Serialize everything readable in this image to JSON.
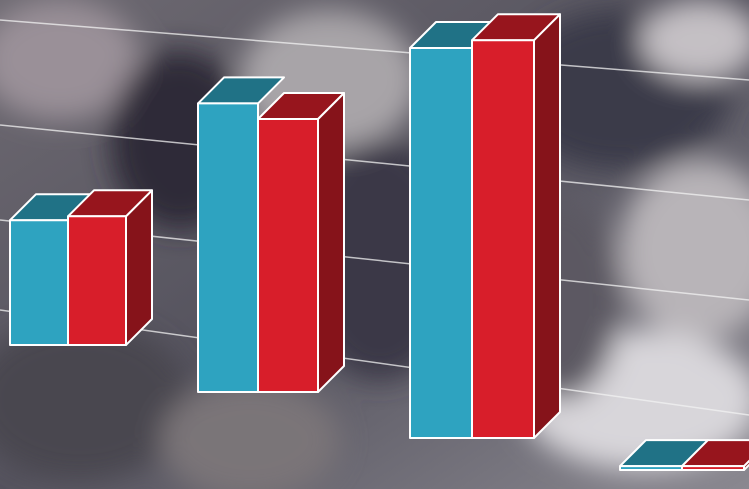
{
  "chart_data": {
    "type": "bar3d",
    "categories": [
      null,
      null,
      null,
      null
    ],
    "series": [
      {
        "color": "#2ea3c0",
        "values": [
          32,
          74,
          100,
          1
        ]
      },
      {
        "color": "#d81e2a",
        "values": [
          33,
          70,
          102,
          1
        ]
      }
    ],
    "ylim": [
      0,
      110
    ]
  }
}
